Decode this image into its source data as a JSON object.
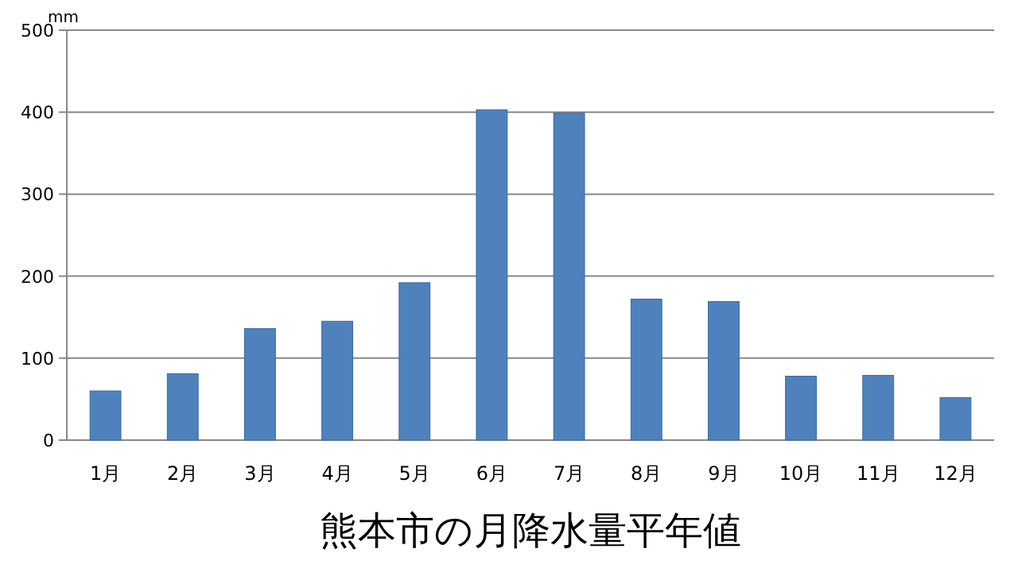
{
  "chart_data": {
    "type": "bar",
    "title": "熊本市の月降水量平年値",
    "ylabel": "mm",
    "categories": [
      "1月",
      "2月",
      "3月",
      "4月",
      "5月",
      "6月",
      "7月",
      "8月",
      "9月",
      "10月",
      "11月",
      "12月"
    ],
    "values": [
      60,
      81,
      136,
      145,
      192,
      403,
      399,
      172,
      169,
      78,
      79,
      52
    ],
    "color": "#4f81bd",
    "ylim": [
      0,
      500
    ],
    "yticks": [
      0,
      100,
      200,
      300,
      400,
      500
    ],
    "grid": "y"
  }
}
